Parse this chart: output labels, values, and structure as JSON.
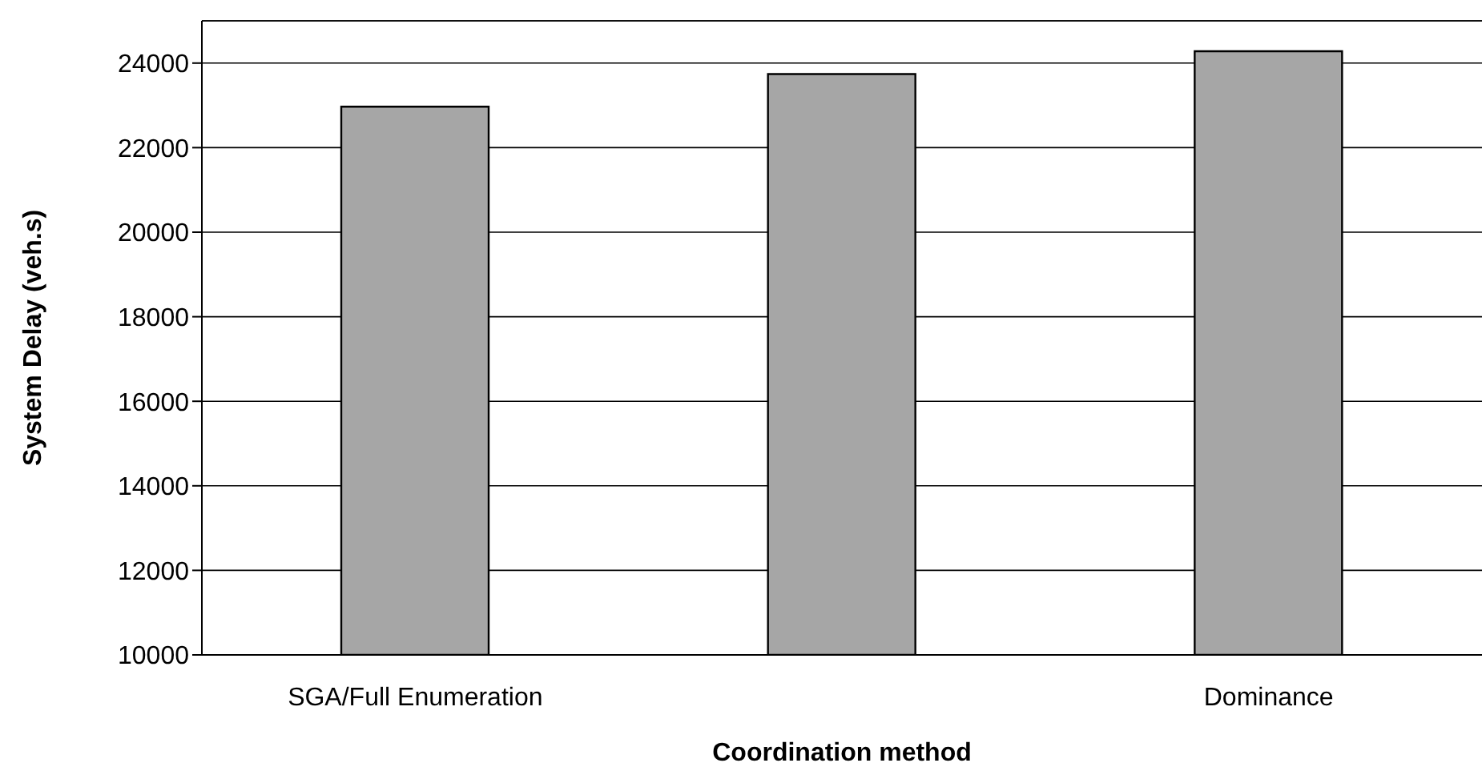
{
  "chart_data": {
    "type": "bar",
    "xlabel": "Coordination method",
    "ylabel": "System Delay (veh.s)",
    "categories": [
      "SGA/Full Enumeration",
      null,
      "Dominance"
    ],
    "values": [
      22970,
      23740,
      24280
    ],
    "color": "#a6a6a6",
    "ylim": [
      10000,
      25000
    ],
    "yticks": [
      10000,
      12000,
      14000,
      16000,
      18000,
      20000,
      22000,
      24000
    ],
    "grid": "y"
  }
}
